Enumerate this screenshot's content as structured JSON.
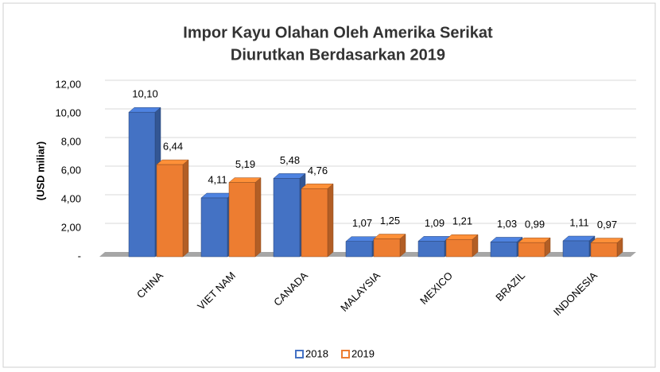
{
  "chart_data": {
    "type": "bar3d",
    "title": "Impor Kayu Olahan Oleh Amerika Serikat",
    "subtitle": "Diurutkan Berdasarkan 2019",
    "y_label": "(USD miliar)",
    "categories": [
      "CHINA",
      "VIET NAM",
      "CANADA",
      "MALAYSIA",
      "MEXICO",
      "BRAZIL",
      "INDONESIA"
    ],
    "series": [
      {
        "name": "2018",
        "color": "#4472c4",
        "values": [
          10.1,
          4.11,
          5.48,
          1.07,
          1.09,
          1.03,
          1.11
        ],
        "value_labels": [
          "10,10",
          "4,11",
          "5,48",
          "1,07",
          "1,09",
          "1,03",
          "1,11"
        ]
      },
      {
        "name": "2019",
        "color": "#ed7d31",
        "values": [
          6.44,
          5.19,
          4.76,
          1.25,
          1.21,
          0.99,
          0.97
        ],
        "value_labels": [
          "6,44",
          "5,19",
          "4,76",
          "1,25",
          "1,21",
          "0,99",
          "0,97"
        ]
      }
    ],
    "ylim": [
      0,
      12
    ],
    "yticks": [
      {
        "value": 0,
        "label": "-"
      },
      {
        "value": 2,
        "label": "2,00"
      },
      {
        "value": 4,
        "label": "4,00"
      },
      {
        "value": 6,
        "label": "6,00"
      },
      {
        "value": 8,
        "label": "8,00"
      },
      {
        "value": 10,
        "label": "10,00"
      },
      {
        "value": 12,
        "label": "12,00"
      }
    ],
    "grid": true,
    "legend": "bottom"
  }
}
